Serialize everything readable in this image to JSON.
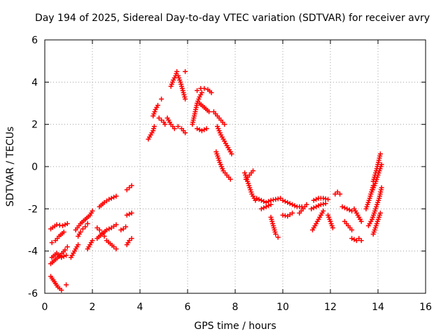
{
  "chart_data": {
    "type": "scatter",
    "title": "Day 194 of 2025, Sidereal Day-to-day VTEC variation (SDTVAR) for receiver avry",
    "xlabel": "GPS time / hours",
    "ylabel": "SDTVAR / TECUs",
    "xlim": [
      0,
      16
    ],
    "ylim": [
      -6,
      6
    ],
    "xticks": [
      "0",
      "2",
      "4",
      "6",
      "8",
      "10",
      "12",
      "14",
      "16"
    ],
    "yticks": [
      "-6",
      "-4",
      "-2",
      "0",
      "2",
      "4",
      "6"
    ],
    "grid": true,
    "marker": "plus",
    "color": "#ff0000",
    "segments": [
      {
        "x": [
          0.25,
          0.4,
          0.55,
          0.7
        ],
        "y": [
          -5.2,
          -5.45,
          -5.7,
          -5.85
        ]
      },
      {
        "x": [
          0.9
        ],
        "y": [
          -5.6
        ]
      },
      {
        "x": [
          0.25,
          0.45,
          0.65,
          0.85,
          0.95
        ],
        "y": [
          -4.6,
          -4.4,
          -4.2,
          -3.95,
          -3.8
        ]
      },
      {
        "x": [
          0.3,
          0.5,
          0.7,
          0.9
        ],
        "y": [
          -4.3,
          -4.1,
          -4.3,
          -4.2
        ]
      },
      {
        "x": [
          0.25,
          0.5,
          0.75,
          0.95
        ],
        "y": [
          -2.95,
          -2.75,
          -2.8,
          -2.7
        ]
      },
      {
        "x": [
          0.3,
          0.45,
          0.6,
          0.8
        ],
        "y": [
          -3.6,
          -3.5,
          -3.3,
          -3.1
        ]
      },
      {
        "x": [
          1.1,
          1.25,
          1.4
        ],
        "y": [
          -4.3,
          -4.0,
          -3.7
        ]
      },
      {
        "x": [
          1.3,
          1.5,
          1.7,
          1.9,
          2.0
        ],
        "y": [
          -3.0,
          -2.7,
          -2.5,
          -2.3,
          -2.1
        ]
      },
      {
        "x": [
          1.4,
          1.5,
          1.6,
          1.7,
          1.8
        ],
        "y": [
          -3.3,
          -3.1,
          -2.95,
          -2.85,
          -2.7
        ]
      },
      {
        "x": [
          1.8,
          1.9,
          2.0
        ],
        "y": [
          -3.9,
          -3.7,
          -3.5
        ]
      },
      {
        "x": [
          2.3,
          2.5,
          2.7,
          2.9,
          3.0
        ],
        "y": [
          -1.9,
          -1.7,
          -1.55,
          -1.45,
          -1.4
        ]
      },
      {
        "x": [
          2.2,
          2.4,
          2.6,
          2.8,
          3.0
        ],
        "y": [
          -3.4,
          -3.2,
          -3.0,
          -2.9,
          -2.75
        ]
      },
      {
        "x": [
          2.2,
          2.3,
          2.4,
          2.5
        ],
        "y": [
          -2.9,
          -3.0,
          -3.15,
          -3.3
        ]
      },
      {
        "x": [
          2.6,
          2.75,
          2.9,
          3.0
        ],
        "y": [
          -3.5,
          -3.65,
          -3.8,
          -3.9
        ]
      },
      {
        "x": [
          3.2,
          3.3,
          3.4
        ],
        "y": [
          -3.0,
          -2.95,
          -2.85
        ]
      },
      {
        "x": [
          3.45,
          3.55,
          3.65
        ],
        "y": [
          -1.1,
          -1.0,
          -0.9
        ]
      },
      {
        "x": [
          3.45,
          3.55,
          3.65
        ],
        "y": [
          -2.3,
          -2.25,
          -2.2
        ]
      },
      {
        "x": [
          3.45,
          3.55,
          3.65
        ],
        "y": [
          -3.7,
          -3.5,
          -3.4
        ]
      },
      {
        "x": [
          4.35,
          4.45,
          4.55,
          4.6
        ],
        "y": [
          1.3,
          1.5,
          1.7,
          1.9
        ]
      },
      {
        "x": [
          4.55,
          4.65,
          4.75
        ],
        "y": [
          2.4,
          2.7,
          2.9
        ]
      },
      {
        "x": [
          4.8,
          4.9,
          5.0,
          5.05
        ],
        "y": [
          2.3,
          2.2,
          2.1,
          2.0
        ]
      },
      {
        "x": [
          4.9
        ],
        "y": [
          3.2
        ]
      },
      {
        "x": [
          5.15,
          5.3,
          5.45,
          5.6,
          5.75,
          5.9
        ],
        "y": [
          2.3,
          2.0,
          1.8,
          1.9,
          1.8,
          1.6
        ]
      },
      {
        "x": [
          5.3,
          5.4,
          5.5,
          5.55
        ],
        "y": [
          3.8,
          4.1,
          4.3,
          4.5
        ]
      },
      {
        "x": [
          5.6,
          5.7,
          5.8,
          5.9
        ],
        "y": [
          4.3,
          4.0,
          3.6,
          3.2
        ]
      },
      {
        "x": [
          5.9
        ],
        "y": [
          4.5
        ]
      },
      {
        "x": [
          6.2,
          6.3,
          6.4,
          6.5,
          6.6
        ],
        "y": [
          2.0,
          2.5,
          3.0,
          3.3,
          3.5
        ]
      },
      {
        "x": [
          6.4,
          6.55,
          6.7,
          6.85,
          7.0
        ],
        "y": [
          3.6,
          3.7,
          3.7,
          3.65,
          3.5
        ]
      },
      {
        "x": [
          6.5,
          6.7,
          6.9
        ],
        "y": [
          3.0,
          2.8,
          2.6
        ]
      },
      {
        "x": [
          6.4,
          6.6,
          6.8
        ],
        "y": [
          1.8,
          1.7,
          1.8
        ]
      },
      {
        "x": [
          7.1,
          7.25,
          7.4,
          7.55
        ],
        "y": [
          2.6,
          2.4,
          2.2,
          2.0
        ]
      },
      {
        "x": [
          7.25,
          7.4,
          7.55,
          7.7,
          7.85
        ],
        "y": [
          1.9,
          1.5,
          1.2,
          0.9,
          0.6
        ]
      },
      {
        "x": [
          7.2,
          7.35,
          7.5,
          7.65,
          7.8
        ],
        "y": [
          0.7,
          0.2,
          -0.2,
          -0.4,
          -0.6
        ]
      },
      {
        "x": [
          8.4,
          8.55,
          8.7,
          8.85
        ],
        "y": [
          -0.3,
          -0.8,
          -1.3,
          -1.6
        ]
      },
      {
        "x": [
          8.45,
          8.6,
          8.75
        ],
        "y": [
          -0.6,
          -0.4,
          -0.2
        ]
      },
      {
        "x": [
          8.9,
          9.1,
          9.3,
          9.5,
          9.7,
          9.9
        ],
        "y": [
          -1.5,
          -1.6,
          -1.7,
          -1.6,
          -1.55,
          -1.5
        ]
      },
      {
        "x": [
          9.1,
          9.3,
          9.5
        ],
        "y": [
          -2.0,
          -1.9,
          -1.8
        ]
      },
      {
        "x": [
          9.5,
          9.6,
          9.7,
          9.8
        ],
        "y": [
          -2.4,
          -2.8,
          -3.2,
          -3.35
        ]
      },
      {
        "x": [
          10.0,
          10.2,
          10.4,
          10.6,
          10.8
        ],
        "y": [
          -1.6,
          -1.7,
          -1.8,
          -1.9,
          -1.9
        ]
      },
      {
        "x": [
          10.0,
          10.2,
          10.4
        ],
        "y": [
          -2.3,
          -2.35,
          -2.2
        ]
      },
      {
        "x": [
          10.7,
          10.85,
          11.0
        ],
        "y": [
          -2.2,
          -2.0,
          -1.8
        ]
      },
      {
        "x": [
          11.3,
          11.5,
          11.7,
          11.9
        ],
        "y": [
          -1.6,
          -1.5,
          -1.5,
          -1.55
        ]
      },
      {
        "x": [
          11.2,
          11.4,
          11.6,
          11.8
        ],
        "y": [
          -2.0,
          -1.9,
          -1.8,
          -1.75
        ]
      },
      {
        "x": [
          11.25,
          11.4,
          11.55,
          11.7
        ],
        "y": [
          -3.0,
          -2.7,
          -2.4,
          -2.1
        ]
      },
      {
        "x": [
          11.9,
          12.0,
          12.1
        ],
        "y": [
          -2.3,
          -2.6,
          -2.9
        ]
      },
      {
        "x": [
          12.2,
          12.3,
          12.4
        ],
        "y": [
          -1.3,
          -1.2,
          -1.3
        ]
      },
      {
        "x": [
          12.5,
          12.7,
          12.9
        ],
        "y": [
          -1.9,
          -2.0,
          -2.1
        ]
      },
      {
        "x": [
          12.6,
          12.75,
          12.9
        ],
        "y": [
          -2.6,
          -2.8,
          -3.0
        ]
      },
      {
        "x": [
          12.9,
          13.0,
          13.1
        ],
        "y": [
          -3.4,
          -3.45,
          -3.5
        ]
      },
      {
        "x": [
          13.2,
          13.3
        ],
        "y": [
          -3.4,
          -3.5
        ]
      },
      {
        "x": [
          13.0,
          13.1,
          13.2,
          13.3
        ],
        "y": [
          -2.0,
          -2.2,
          -2.4,
          -2.6
        ]
      },
      {
        "x": [
          13.5,
          13.65,
          13.8
        ],
        "y": [
          -2.0,
          -1.5,
          -0.9
        ]
      },
      {
        "x": [
          13.6,
          13.75,
          13.9,
          14.05,
          14.15
        ],
        "y": [
          -2.8,
          -2.5,
          -2.0,
          -1.5,
          -1.0
        ]
      },
      {
        "x": [
          13.8,
          13.95,
          14.1
        ],
        "y": [
          -0.7,
          -0.1,
          0.6
        ]
      },
      {
        "x": [
          13.7,
          13.85,
          14.0,
          14.15
        ],
        "y": [
          -1.3,
          -0.9,
          -0.4,
          0.1
        ]
      },
      {
        "x": [
          13.8,
          13.95,
          14.1
        ],
        "y": [
          -3.2,
          -2.7,
          -2.2
        ]
      }
    ]
  }
}
